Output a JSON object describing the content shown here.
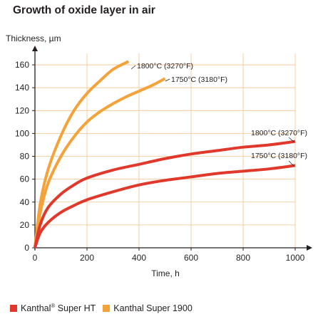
{
  "colors": {
    "super_ht": "#e0392c",
    "super_1900": "#f4a23a",
    "grid": "#f2c48e",
    "axis": "#231f20"
  },
  "chart_data": {
    "type": "line",
    "title": "Growth of oxide layer in air",
    "ylabel": "Thickness, µm",
    "xlabel": "Time, h",
    "xlim": [
      0,
      1000
    ],
    "ylim": [
      0,
      170
    ],
    "xticks": [
      0,
      200,
      400,
      600,
      800,
      1000
    ],
    "yticks": [
      0,
      20,
      40,
      60,
      80,
      100,
      120,
      140,
      160
    ],
    "grid": true,
    "legend_position": "bottom",
    "series": [
      {
        "group": "Kanthal Super 1900",
        "label": "1800°C (3270°F)",
        "x": [
          0,
          20,
          50,
          100,
          150,
          200,
          250,
          300,
          360
        ],
        "y": [
          0,
          38,
          68,
          98,
          120,
          135,
          146,
          156,
          163
        ]
      },
      {
        "group": "Kanthal Super 1900",
        "label": "1750°C (3180°F)",
        "x": [
          0,
          20,
          50,
          100,
          150,
          200,
          250,
          300,
          350,
          400,
          450,
          500
        ],
        "y": [
          0,
          30,
          56,
          80,
          97,
          110,
          119,
          126,
          132,
          137,
          142,
          148
        ]
      },
      {
        "group": "Kanthal® Super HT",
        "label": "1800°C (3270°F)",
        "x": [
          0,
          20,
          50,
          100,
          150,
          200,
          300,
          400,
          500,
          600,
          700,
          800,
          900,
          1000
        ],
        "y": [
          0,
          20,
          35,
          47,
          55,
          61,
          68,
          73,
          78,
          82,
          85,
          88,
          90,
          93
        ]
      },
      {
        "group": "Kanthal® Super HT",
        "label": "1750°C (3180°F)",
        "x": [
          0,
          20,
          50,
          100,
          150,
          200,
          300,
          400,
          500,
          600,
          700,
          800,
          900,
          1000
        ],
        "y": [
          0,
          13,
          22,
          31,
          37,
          42,
          49,
          55,
          59,
          62,
          65,
          67,
          69,
          72
        ]
      }
    ],
    "legend": [
      {
        "name_main": "Kanthal",
        "name_sup": "®",
        "name_rest": " Super HT",
        "color_key": "super_ht"
      },
      {
        "name_main": "Kanthal Super 1900",
        "name_sup": "",
        "name_rest": "",
        "color_key": "super_1900"
      }
    ]
  }
}
